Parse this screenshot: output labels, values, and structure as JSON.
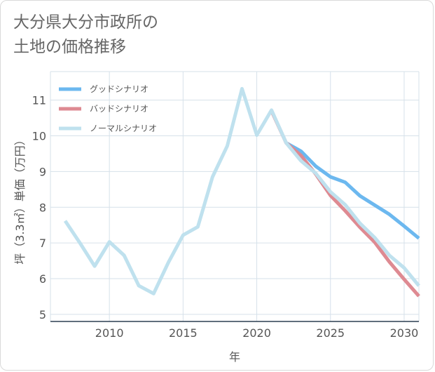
{
  "page": {
    "title": "大分県大分市政所の\n土地の価格推移"
  },
  "colors": {
    "good": "#6cb8ef",
    "bad": "#de8a92",
    "normal": "#bfe1ee",
    "grid": "#d6e1ea",
    "axis": "#2c3e50"
  },
  "chart_data": {
    "type": "line",
    "title": "大分県大分市政所の土地の価格推移",
    "xlabel": "年",
    "ylabel": "坪（3.3㎡）単価（万円）",
    "xlim": [
      2006,
      2031
    ],
    "ylim": [
      4.8,
      11.8
    ],
    "xticks": [
      2010,
      2015,
      2020,
      2025,
      2030
    ],
    "yticks": [
      5,
      6,
      7,
      8,
      9,
      10,
      11
    ],
    "legend_position": "top-left",
    "series": [
      {
        "name": "グッドシナリオ",
        "color": "#6cb8ef",
        "points": [
          [
            2022,
            9.8
          ],
          [
            2023,
            9.57
          ],
          [
            2024,
            9.15
          ],
          [
            2025,
            8.85
          ],
          [
            2026,
            8.7
          ],
          [
            2027,
            8.32
          ],
          [
            2028,
            8.06
          ],
          [
            2029,
            7.8
          ],
          [
            2030,
            7.47
          ],
          [
            2031,
            7.13
          ]
        ]
      },
      {
        "name": "バッドシナリオ",
        "color": "#de8a92",
        "points": [
          [
            2021,
            10.7
          ],
          [
            2022,
            9.8
          ],
          [
            2023,
            9.45
          ],
          [
            2024,
            8.93
          ],
          [
            2025,
            8.33
          ],
          [
            2026,
            7.9
          ],
          [
            2027,
            7.44
          ],
          [
            2028,
            7.02
          ],
          [
            2029,
            6.47
          ],
          [
            2030,
            5.98
          ],
          [
            2031,
            5.51
          ]
        ]
      },
      {
        "name": "ノーマルシナリオ",
        "color": "#bfe1ee",
        "points": [
          [
            2007,
            7.62
          ],
          [
            2008,
            7.0
          ],
          [
            2009,
            6.35
          ],
          [
            2010,
            7.03
          ],
          [
            2011,
            6.65
          ],
          [
            2012,
            5.8
          ],
          [
            2013,
            5.58
          ],
          [
            2014,
            6.45
          ],
          [
            2015,
            7.22
          ],
          [
            2016,
            7.45
          ],
          [
            2017,
            8.85
          ],
          [
            2018,
            9.72
          ],
          [
            2019,
            11.32
          ],
          [
            2020,
            10.02
          ],
          [
            2021,
            10.72
          ],
          [
            2022,
            9.8
          ],
          [
            2023,
            9.3
          ],
          [
            2024,
            8.95
          ],
          [
            2025,
            8.43
          ],
          [
            2026,
            8.07
          ],
          [
            2027,
            7.55
          ],
          [
            2028,
            7.15
          ],
          [
            2029,
            6.65
          ],
          [
            2030,
            6.3
          ],
          [
            2031,
            5.8
          ]
        ]
      }
    ]
  }
}
